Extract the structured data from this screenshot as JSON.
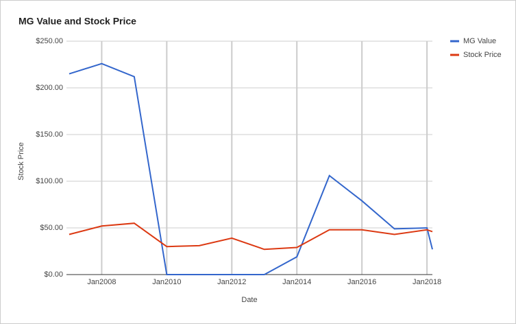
{
  "chart_data": {
    "type": "line",
    "title": "MG Value and Stock Price",
    "x_label": "Date",
    "y_label": "Stock Price",
    "x": [
      "2007-01",
      "2008-01",
      "2009-01",
      "2010-01",
      "2011-01",
      "2012-01",
      "2013-01",
      "2014-01",
      "2015-01",
      "2016-01",
      "2017-01",
      "2018-01",
      "2018-03"
    ],
    "series": [
      {
        "name": "MG Value",
        "color": "#3366cc",
        "values": [
          215,
          226,
          212,
          0,
          0,
          0,
          0,
          19,
          106,
          79,
          49,
          50,
          27
        ]
      },
      {
        "name": "Stock Price",
        "color": "#dc3912",
        "values": [
          43,
          52,
          55,
          30,
          31,
          39,
          27,
          29,
          48,
          48,
          43,
          48,
          46
        ]
      }
    ],
    "xlim": [
      "2006-12",
      "2018-03"
    ],
    "xticks": [
      {
        "value": "2008-01",
        "label": "Jan2008"
      },
      {
        "value": "2010-01",
        "label": "Jan2010"
      },
      {
        "value": "2012-01",
        "label": "Jan2012"
      },
      {
        "value": "2014-01",
        "label": "Jan2014"
      },
      {
        "value": "2016-01",
        "label": "Jan2016"
      },
      {
        "value": "2018-01",
        "label": "Jan2018"
      }
    ],
    "ylim": [
      0,
      250
    ],
    "yticks": [
      {
        "value": 0,
        "label": "$0.00"
      },
      {
        "value": 50,
        "label": "$50.00"
      },
      {
        "value": 100,
        "label": "$100.00"
      },
      {
        "value": 150,
        "label": "$150.00"
      },
      {
        "value": 200,
        "label": "$200.00"
      },
      {
        "value": 250,
        "label": "$250.00"
      }
    ],
    "grid": true,
    "legend": "right"
  }
}
